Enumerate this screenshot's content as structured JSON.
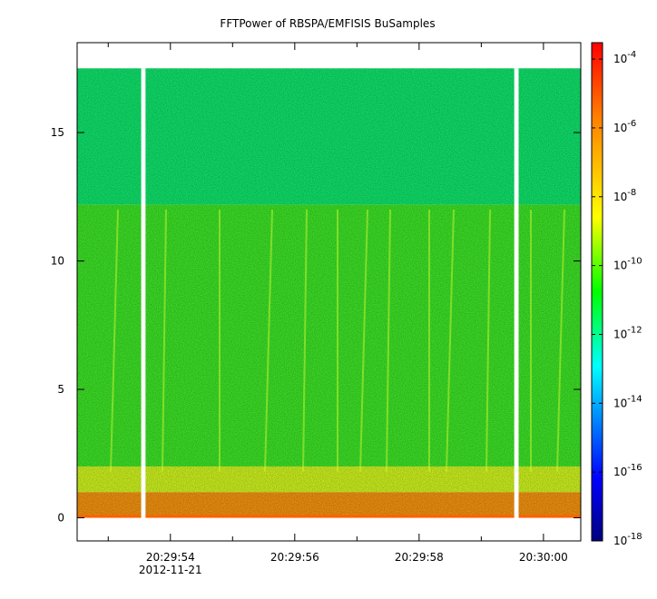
{
  "chart_data": {
    "type": "heatmap",
    "title": "FFTPower of RBSPA/EMFISIS  BuSamples",
    "xlabel": "",
    "ylabel": "",
    "x": {
      "range": [
        "20:29:52.5",
        "20:30:00.6"
      ],
      "ticks": [
        {
          "label": "20:29:54",
          "sublabel": "2012-11-21"
        },
        {
          "label": "20:29:56",
          "sublabel": ""
        },
        {
          "label": "20:29:58",
          "sublabel": ""
        },
        {
          "label": "20:30:00",
          "sublabel": ""
        }
      ],
      "minor_ticks": [
        "20:29:53",
        "20:29:55",
        "20:29:57",
        "20:29:59"
      ]
    },
    "y": {
      "range": [
        -0.9,
        18.5
      ],
      "ticks": [
        0,
        5,
        10,
        15
      ],
      "tick_labels": [
        "0",
        "5",
        "10",
        "15"
      ]
    },
    "colorbar": {
      "scale": "log",
      "range": [
        "1e-18",
        "3e-4"
      ],
      "tick_labels": [
        {
          "base": "10",
          "exp": "-4"
        },
        {
          "base": "10",
          "exp": "-6"
        },
        {
          "base": "10",
          "exp": "-8"
        },
        {
          "base": "10",
          "exp": "-10"
        },
        {
          "base": "10",
          "exp": "-12"
        },
        {
          "base": "10",
          "exp": "-14"
        },
        {
          "base": "10",
          "exp": "-16"
        },
        {
          "base": "10",
          "exp": "-18"
        }
      ],
      "colors": [
        "#00007f",
        "#0000ff",
        "#00ffff",
        "#00ff00",
        "#ffff00",
        "#ff7f00",
        "#ff0000"
      ]
    },
    "data_regions": [
      {
        "y_range": [
          0,
          1.0
        ],
        "level": "1e-8",
        "color": "#ff9a10"
      },
      {
        "y_range": [
          1.0,
          2.0
        ],
        "level": "1e-9",
        "color": "#d8ff20"
      },
      {
        "y_range": [
          2.0,
          12.2
        ],
        "level": "1e-10",
        "color": "#40ee28"
      },
      {
        "y_range": [
          12.2,
          17.5
        ],
        "level": "3e-12",
        "color": "#10ee70"
      }
    ],
    "data_gaps": [
      {
        "start": "20:29:53.53",
        "end": "20:29:53.60"
      },
      {
        "start": "20:29:59.53",
        "end": "20:29:59.60"
      }
    ],
    "grid": false,
    "legend": "none"
  }
}
